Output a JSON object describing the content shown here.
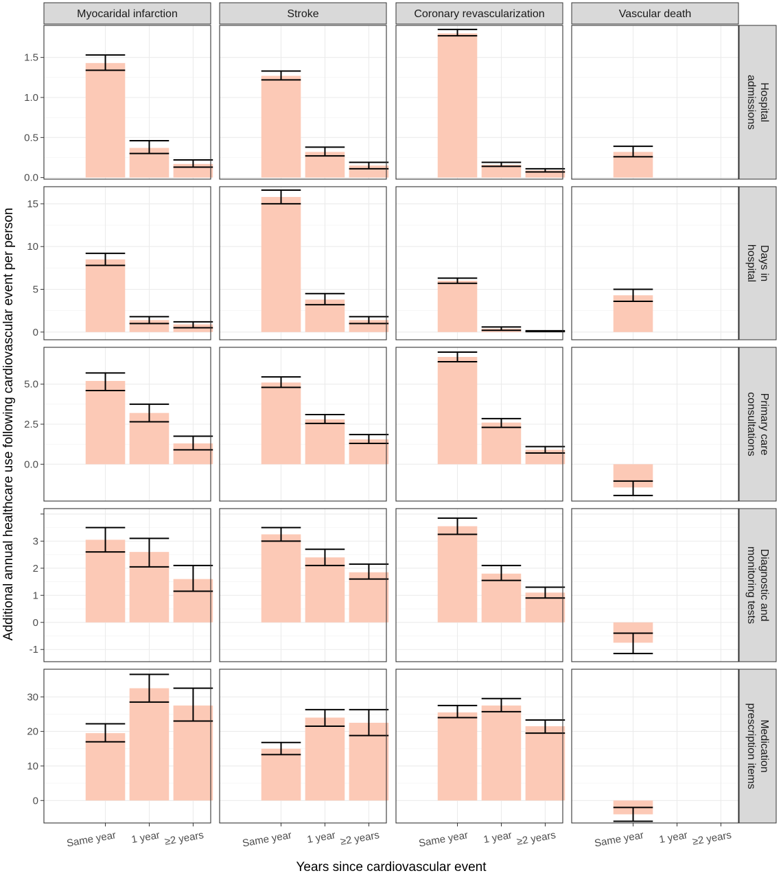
{
  "chart_data": {
    "type": "bar",
    "xlabel": "Years since cardiovascular event",
    "ylabel": "Additional annual healthcare use following cardiovascular event per person",
    "columns": [
      "Myocaridal infarction",
      "Stroke",
      "Coronary revascularization",
      "Vascular death"
    ],
    "rows": [
      "Hospital admissions",
      "Days in hospital",
      "Primary care consultations",
      "Diagnostic and monitoring tests",
      "Medication prescription items"
    ],
    "row_strip_lines": [
      [
        "Hospital",
        "admissions"
      ],
      [
        "Days in",
        "hospital"
      ],
      [
        "Primary care",
        "consultations"
      ],
      [
        "Diagnostic and",
        "monitoring tests"
      ],
      [
        "Medication",
        "prescription items"
      ]
    ],
    "categories": [
      "Same year",
      "1 year",
      "≥2 years"
    ],
    "panels": [
      {
        "ylim": [
          -0.02,
          1.9
        ],
        "yticks": [
          0.0,
          0.5,
          1.0,
          1.5
        ],
        "yticklabels": [
          "0.0",
          "0.5",
          "1.0",
          "1.5"
        ],
        "values": [
          [
            1.43,
            0.37,
            0.17
          ],
          [
            1.27,
            0.32,
            0.15
          ],
          [
            1.8,
            0.16,
            0.09
          ],
          [
            0.32,
            null,
            null
          ]
        ],
        "errors": [
          [
            [
              1.34,
              1.53
            ],
            [
              0.3,
              0.46
            ],
            [
              0.13,
              0.22
            ]
          ],
          [
            [
              1.22,
              1.33
            ],
            [
              0.27,
              0.38
            ],
            [
              0.11,
              0.19
            ]
          ],
          [
            [
              1.77,
              1.85
            ],
            [
              0.14,
              0.19
            ],
            [
              0.07,
              0.11
            ]
          ],
          [
            [
              0.26,
              0.39
            ],
            null,
            null
          ]
        ]
      },
      {
        "ylim": [
          -0.9,
          17.0
        ],
        "yticks": [
          0,
          5,
          10,
          15
        ],
        "yticklabels": [
          "0",
          "5",
          "10",
          "15"
        ],
        "values": [
          [
            8.5,
            1.4,
            0.9
          ],
          [
            15.8,
            3.8,
            1.4
          ],
          [
            6.0,
            0.4,
            0.1
          ],
          [
            4.3,
            null,
            null
          ]
        ],
        "errors": [
          [
            [
              7.8,
              9.2
            ],
            [
              1.0,
              1.8
            ],
            [
              0.5,
              1.2
            ]
          ],
          [
            [
              15.0,
              16.6
            ],
            [
              3.2,
              4.5
            ],
            [
              1.0,
              1.8
            ]
          ],
          [
            [
              5.7,
              6.3
            ],
            [
              0.2,
              0.6
            ],
            [
              0.05,
              0.15
            ]
          ],
          [
            [
              3.6,
              5.0
            ],
            null,
            null
          ]
        ]
      },
      {
        "ylim": [
          -2.3,
          7.3
        ],
        "yticks": [
          0.0,
          2.5,
          5.0
        ],
        "yticklabels": [
          "0.0",
          "2.5",
          "5.0"
        ],
        "values": [
          [
            5.2,
            3.2,
            1.3
          ],
          [
            5.1,
            2.8,
            1.55
          ],
          [
            6.7,
            2.6,
            0.9
          ],
          [
            -1.45,
            null,
            null
          ]
        ],
        "errors": [
          [
            [
              4.6,
              5.7
            ],
            [
              2.65,
              3.75
            ],
            [
              0.9,
              1.75
            ]
          ],
          [
            [
              4.8,
              5.45
            ],
            [
              2.55,
              3.1
            ],
            [
              1.3,
              1.85
            ]
          ],
          [
            [
              6.4,
              7.0
            ],
            [
              2.3,
              2.85
            ],
            [
              0.7,
              1.1
            ]
          ],
          [
            [
              -1.95,
              -1.05
            ],
            null,
            null
          ]
        ]
      },
      {
        "ylim": [
          -1.45,
          4.2
        ],
        "yticks": [
          -1,
          0,
          1,
          2,
          3,
          4
        ],
        "yticklabels": [
          "-1",
          "0",
          "1",
          "2",
          "3",
          ""
        ],
        "values": [
          [
            3.05,
            2.6,
            1.6
          ],
          [
            3.25,
            2.4,
            1.85
          ],
          [
            3.55,
            1.8,
            1.1
          ],
          [
            -0.75,
            null,
            null
          ]
        ],
        "errors": [
          [
            [
              2.6,
              3.5
            ],
            [
              2.05,
              3.1
            ],
            [
              1.15,
              2.1
            ]
          ],
          [
            [
              3.0,
              3.5
            ],
            [
              2.1,
              2.7
            ],
            [
              1.6,
              2.15
            ]
          ],
          [
            [
              3.25,
              3.85
            ],
            [
              1.55,
              2.1
            ],
            [
              0.9,
              1.3
            ]
          ],
          [
            [
              -1.15,
              -0.4
            ],
            null,
            null
          ]
        ]
      },
      {
        "ylim": [
          -6.5,
          38.0
        ],
        "yticks": [
          0,
          10,
          20,
          30
        ],
        "yticklabels": [
          "0",
          "10",
          "20",
          "30"
        ],
        "values": [
          [
            19.5,
            32.5,
            27.5
          ],
          [
            15.0,
            24.0,
            22.5
          ],
          [
            25.5,
            27.5,
            21.5
          ],
          [
            -4.0,
            null,
            null
          ]
        ],
        "errors": [
          [
            [
              17.0,
              22.2
            ],
            [
              28.5,
              36.5
            ],
            [
              23.0,
              32.5
            ]
          ],
          [
            [
              13.3,
              16.8
            ],
            [
              21.5,
              26.3
            ],
            [
              18.8,
              26.3
            ]
          ],
          [
            [
              24.0,
              27.5
            ],
            [
              25.7,
              29.5
            ],
            [
              19.5,
              23.3
            ]
          ],
          [
            [
              -6.0,
              -2.0
            ],
            null,
            null
          ]
        ]
      }
    ],
    "bar_color": "#fcc9b6",
    "strip_fill": "#d9d9d9",
    "grid": true
  }
}
